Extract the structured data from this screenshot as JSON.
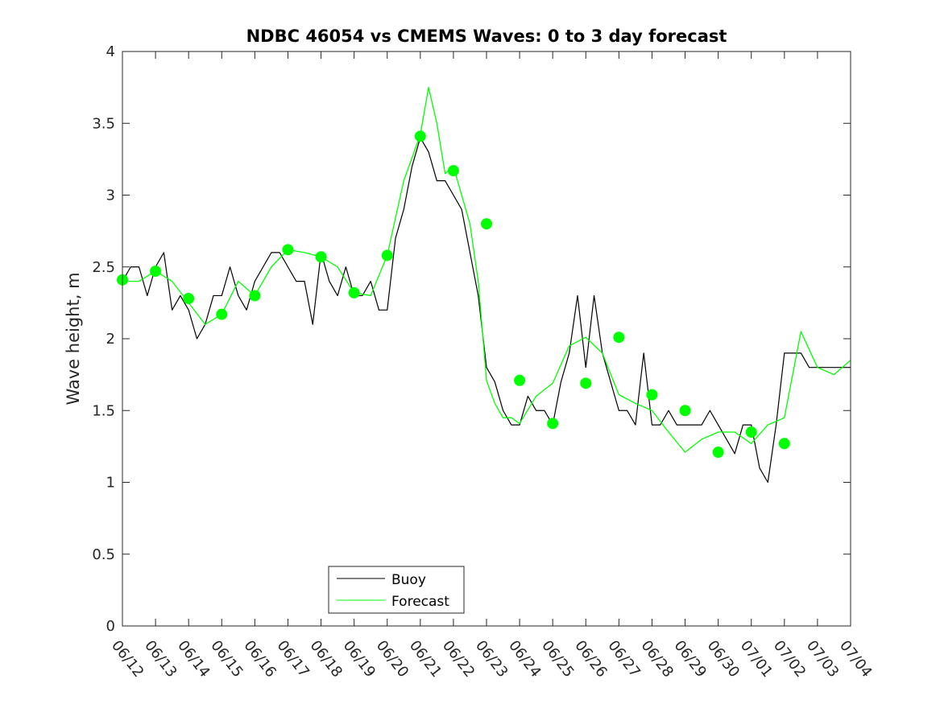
{
  "chart_data": {
    "type": "line",
    "title": "NDBC 46054 vs CMEMS Waves: 0 to 3 day forecast",
    "xlabel": "",
    "ylabel": "Wave height, m",
    "xlim": [
      "06/12",
      "07/04"
    ],
    "ylim": [
      0,
      4
    ],
    "grid": false,
    "legend_position": "bottom-center",
    "x_tick_labels": [
      "06/12",
      "06/13",
      "06/14",
      "06/15",
      "06/16",
      "06/17",
      "06/18",
      "06/19",
      "06/20",
      "06/21",
      "06/22",
      "06/23",
      "06/24",
      "06/25",
      "06/26",
      "06/27",
      "06/28",
      "06/29",
      "06/30",
      "07/01",
      "07/02",
      "07/03",
      "07/04"
    ],
    "y_tick_labels": [
      "0",
      "0.5",
      "1",
      "1.5",
      "2",
      "2.5",
      "3",
      "3.5",
      "4"
    ],
    "y_tick_values": [
      0,
      0.5,
      1,
      1.5,
      2,
      2.5,
      3,
      3.5,
      4
    ],
    "series": [
      {
        "name": "Buoy",
        "color": "#000000",
        "x": [
          0,
          0.25,
          0.5,
          0.75,
          1,
          1.25,
          1.5,
          1.75,
          2,
          2.25,
          2.5,
          2.75,
          3,
          3.25,
          3.5,
          3.75,
          4,
          4.25,
          4.5,
          4.75,
          5,
          5.25,
          5.5,
          5.75,
          6,
          6.25,
          6.5,
          6.75,
          7,
          7.25,
          7.5,
          7.75,
          8,
          8.25,
          8.5,
          8.75,
          9,
          9.25,
          9.5,
          9.75,
          10,
          10.25,
          10.5,
          10.75,
          11,
          11.25,
          11.5,
          11.75,
          12,
          12.25,
          12.5,
          12.75,
          13,
          13.25,
          13.5,
          13.75,
          14,
          14.25,
          14.5,
          14.75,
          15,
          15.25,
          15.5,
          15.75,
          16,
          16.25,
          16.5,
          16.75,
          17,
          17.25,
          17.5,
          17.75,
          18,
          18.25,
          18.5,
          18.75,
          19,
          19.25,
          19.5,
          19.75,
          20,
          20.25,
          20.5,
          20.75,
          21,
          21.25,
          21.5,
          21.75,
          22
        ],
        "values": [
          2.4,
          2.5,
          2.5,
          2.3,
          2.5,
          2.6,
          2.2,
          2.3,
          2.2,
          2.0,
          2.1,
          2.3,
          2.3,
          2.5,
          2.3,
          2.2,
          2.4,
          2.5,
          2.6,
          2.6,
          2.5,
          2.4,
          2.4,
          2.1,
          2.6,
          2.4,
          2.3,
          2.5,
          2.3,
          2.3,
          2.4,
          2.2,
          2.2,
          2.7,
          2.9,
          3.2,
          3.4,
          3.3,
          3.1,
          3.1,
          3.0,
          2.9,
          2.6,
          2.3,
          1.8,
          1.7,
          1.5,
          1.4,
          1.4,
          1.6,
          1.5,
          1.5,
          1.4,
          1.7,
          1.9,
          2.3,
          1.8,
          2.3,
          1.9,
          1.7,
          1.5,
          1.5,
          1.4,
          1.9,
          1.4,
          1.4,
          1.5,
          1.4,
          1.4,
          1.4,
          1.4,
          1.5,
          1.4,
          1.3,
          1.2,
          1.4,
          1.4,
          1.1,
          1.0,
          1.4,
          1.9,
          1.9,
          1.9,
          1.8,
          1.8,
          1.8,
          1.8,
          1.8,
          1.8
        ]
      },
      {
        "name": "Forecast",
        "color": "#00ff00",
        "x": [
          0,
          0.5,
          1,
          1.5,
          2,
          2.5,
          3,
          3.5,
          4,
          4.5,
          5,
          5.5,
          6,
          6.5,
          7,
          7.5,
          8,
          8.5,
          9,
          9.25,
          9.5,
          9.75,
          10,
          10.25,
          10.5,
          10.75,
          11,
          11.25,
          11.5,
          11.75,
          12,
          12.5,
          13,
          13.5,
          14,
          14.5,
          15,
          15.5,
          16,
          16.5,
          17,
          17.5,
          18,
          18.5,
          19,
          19.5,
          20,
          20.5,
          21,
          21.5,
          22
        ],
        "values": [
          2.4,
          2.4,
          2.47,
          2.4,
          2.25,
          2.1,
          2.17,
          2.4,
          2.3,
          2.5,
          2.62,
          2.6,
          2.57,
          2.5,
          2.32,
          2.3,
          2.58,
          3.1,
          3.42,
          3.75,
          3.5,
          3.15,
          3.2,
          3.0,
          2.8,
          2.4,
          1.71,
          1.55,
          1.45,
          1.45,
          1.41,
          1.6,
          1.69,
          1.95,
          2.01,
          1.9,
          1.61,
          1.55,
          1.5,
          1.35,
          1.21,
          1.3,
          1.35,
          1.35,
          1.27,
          1.4,
          1.45,
          2.05,
          1.8,
          1.75,
          1.85
        ]
      }
    ],
    "forecast_markers": {
      "x": [
        0,
        1,
        2,
        3,
        4,
        5,
        6,
        7,
        8,
        9,
        10,
        11,
        12,
        13,
        14,
        15,
        16,
        17,
        18,
        19,
        20
      ],
      "values": [
        2.41,
        2.47,
        2.28,
        2.17,
        2.3,
        2.62,
        2.57,
        2.32,
        2.58,
        3.41,
        3.17,
        2.8,
        1.71,
        1.41,
        1.69,
        2.01,
        1.61,
        1.5,
        1.21,
        1.35,
        1.27
      ]
    }
  }
}
